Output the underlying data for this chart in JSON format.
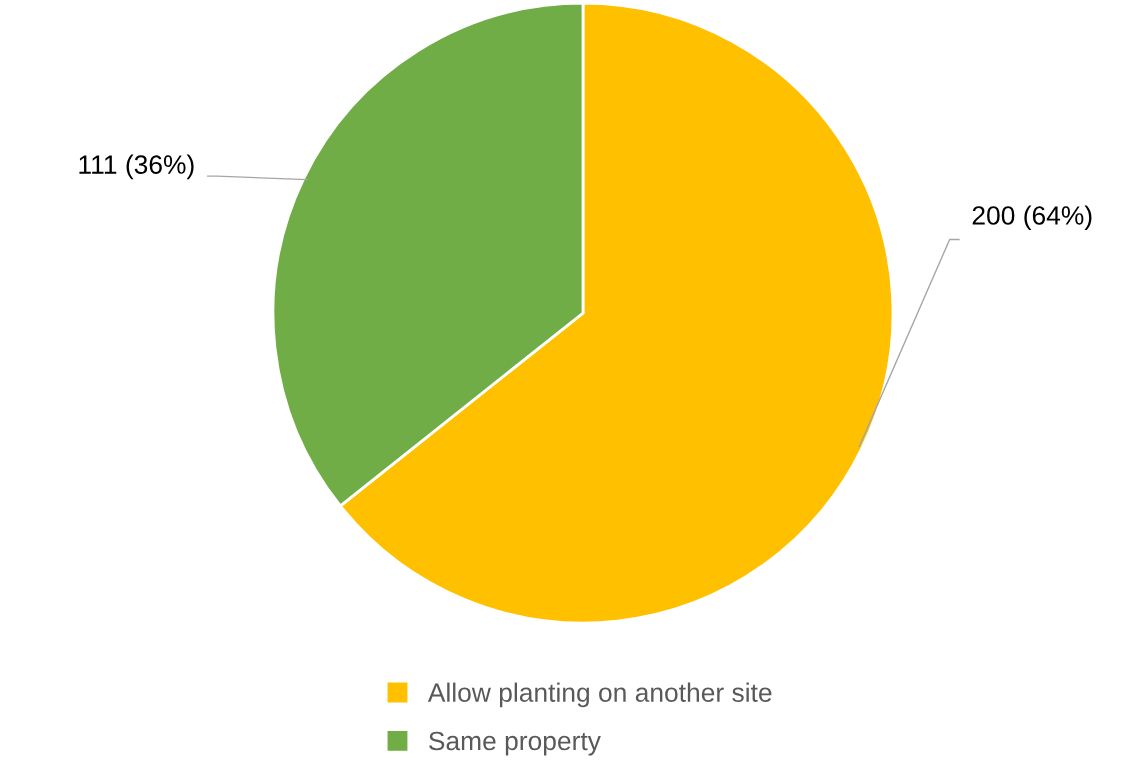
{
  "chart_data": {
    "type": "pie",
    "categories": [
      "Allow planting on another site",
      "Same property"
    ],
    "values": [
      200,
      111
    ],
    "colors": [
      "#ffc000",
      "#70ad47"
    ],
    "value_labels": [
      "200 (64%)",
      "111 (36%)"
    ],
    "legend": "bottom"
  }
}
